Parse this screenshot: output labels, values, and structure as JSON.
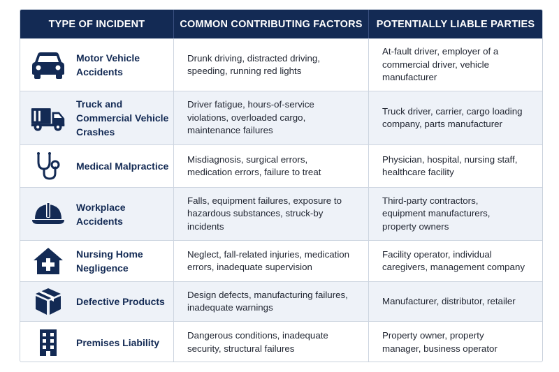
{
  "table": {
    "headers": [
      "TYPE OF INCIDENT",
      "COMMON CONTRIBUTING FACTORS",
      "POTENTIALLY LIABLE PARTIES"
    ],
    "rows": [
      {
        "icon": "car-icon",
        "type": "Motor Vehicle\nAccidents",
        "factors": "Drunk driving, distracted driving,\nspeeding, running red lights",
        "parties": "At-fault driver, employer of a\ncommercial driver, vehicle\nmanufacturer"
      },
      {
        "icon": "truck-icon",
        "type": "Truck and\nCommercial Vehicle\nCrashes",
        "factors": "Driver fatigue, hours-of-service\nviolations, overloaded cargo,\nmaintenance failures",
        "parties": "Truck driver, carrier, cargo loading\ncompany, parts manufacturer"
      },
      {
        "icon": "stethoscope-icon",
        "type": "Medical Malpractice",
        "factors": "Misdiagnosis, surgical errors,\nmedication errors, failure to treat",
        "parties": "Physician, hospital, nursing staff,\nhealthcare facility"
      },
      {
        "icon": "hard-hat-icon",
        "type": "Workplace\nAccidents",
        "factors": "Falls, equipment failures, exposure to\nhazardous substances, struck-by\nincidents",
        "parties": "Third-party contractors,\nequipment manufacturers,\nproperty owners"
      },
      {
        "icon": "medical-house-icon",
        "type": "Nursing Home\nNegligence",
        "factors": "Neglect, fall-related injuries, medication\nerrors, inadequate supervision",
        "parties": "Facility operator, individual\ncaregivers, management company"
      },
      {
        "icon": "box-icon",
        "type": "Defective Products",
        "factors": "Design defects, manufacturing failures,\ninadequate warnings",
        "parties": "Manufacturer, distributor, retailer"
      },
      {
        "icon": "building-icon",
        "type": "Premises Liability",
        "factors": "Dangerous conditions, inadequate\nsecurity, structural failures",
        "parties": "Property owner, property\nmanager, business operator"
      }
    ]
  }
}
